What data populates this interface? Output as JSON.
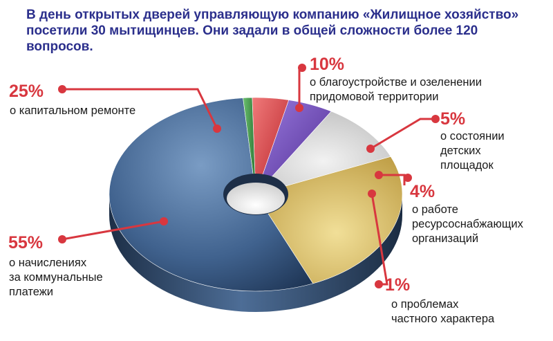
{
  "title": "В день открытых дверей управляющую компанию «Жилищное хозяйство» посетили 30 мытищинцев. Они задали в общей сложности более 120 вопросов.",
  "colors": {
    "title": "#2b2f8c",
    "callout": "#d8373f"
  },
  "chart_data": {
    "type": "pie",
    "style": "3d-donut",
    "title": "В день открытых дверей управляющую компанию «Жилищное хозяйство» посетили 30 мытищинцев. Они задали в общей сложности более 120 вопросов.",
    "slices": [
      {
        "label": "о начислениях за коммунальные платежи",
        "value": 55,
        "value_label": "55%",
        "color": "#3b5e8a"
      },
      {
        "label": "о капитальном ремонте",
        "value": 25,
        "value_label": "25%",
        "color": "#d7b95a"
      },
      {
        "label": "о благоустройстве и озеленении придомовой территории",
        "value": 10,
        "value_label": "10%",
        "color": "#d9d9d9"
      },
      {
        "label": "о состоянии детских площадок",
        "value": 5,
        "value_label": "5%",
        "color": "#6b3fb0"
      },
      {
        "label": "о работе ресурсоснабжающих организаций",
        "value": 4,
        "value_label": "4%",
        "color": "#d8373f"
      },
      {
        "label": "о проблемах частного характера",
        "value": 1,
        "value_label": "1%",
        "color": "#3f9a4c"
      }
    ]
  },
  "callouts": [
    {
      "pct": "55%",
      "lines": [
        "о начислениях",
        "за коммунальные",
        "платежи"
      ]
    },
    {
      "pct": "25%",
      "lines": [
        "о капитальном ремонте"
      ]
    },
    {
      "pct": "10%",
      "lines": [
        "о благоустройстве и озеленении",
        "придомовой территории"
      ]
    },
    {
      "pct": "5%",
      "lines": [
        "о состоянии",
        "детских",
        "площадок"
      ]
    },
    {
      "pct": "4%",
      "lines": [
        "о работе",
        "ресурсоснабжающих",
        "организаций"
      ]
    },
    {
      "pct": "1%",
      "lines": [
        "о проблемах",
        "частного характера"
      ]
    }
  ]
}
